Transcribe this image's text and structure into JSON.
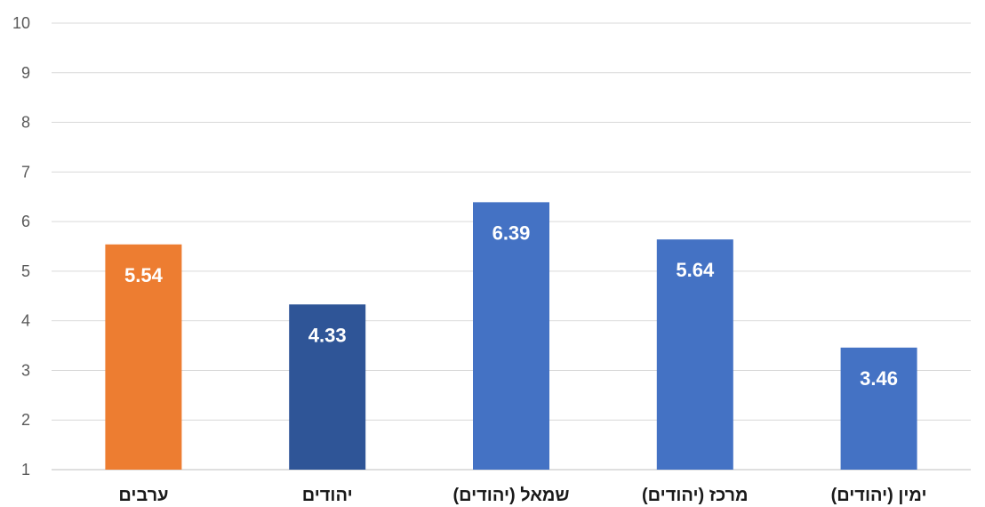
{
  "chart_data": {
    "type": "bar",
    "title": "",
    "xlabel": "",
    "ylabel": "",
    "categories": [
      "ערבים",
      "יהודים",
      "שמאל (יהודים)",
      "מרכז (יהודים)",
      "ימין (יהודים)"
    ],
    "values": [
      5.54,
      4.33,
      6.39,
      5.64,
      3.46
    ],
    "value_labels": [
      "5.54",
      "4.33",
      "6.39",
      "5.64",
      "3.46"
    ],
    "colors": [
      "#ED7D31",
      "#2F5597",
      "#4472C4",
      "#4472C4",
      "#4472C4"
    ],
    "ylim": [
      1,
      10
    ],
    "yticks": [
      "1",
      "2",
      "3",
      "4",
      "5",
      "6",
      "7",
      "8",
      "9",
      "10"
    ],
    "grid": true,
    "legend": "none"
  }
}
